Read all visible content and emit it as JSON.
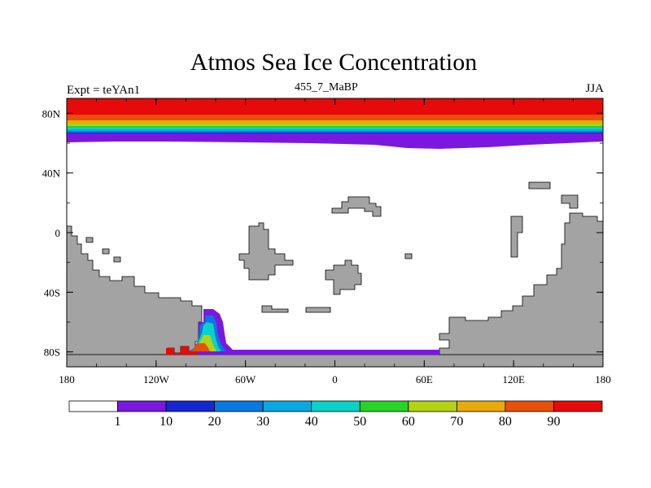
{
  "figure": {
    "title": "Atmos Sea Ice Concentration",
    "left_label": "Expt = teYAn1",
    "center_label": "455_7_MaBP",
    "right_label": "JJA"
  },
  "map": {
    "projection": "cylindrical equidistant",
    "lon_range": [
      -180,
      180
    ],
    "lat_range": [
      -90,
      90
    ],
    "lon_ticks": [
      {
        "value": -180,
        "label": "180"
      },
      {
        "value": -120,
        "label": "120W"
      },
      {
        "value": -60,
        "label": "60W"
      },
      {
        "value": 0,
        "label": "0"
      },
      {
        "value": 60,
        "label": "60E"
      },
      {
        "value": 120,
        "label": "120E"
      },
      {
        "value": 180,
        "label": "180"
      }
    ],
    "lat_ticks": [
      {
        "value": 80,
        "label": "80N"
      },
      {
        "value": 40,
        "label": "40N"
      },
      {
        "value": 0,
        "label": "0"
      },
      {
        "value": -40,
        "label": "40S"
      },
      {
        "value": -80,
        "label": "80S"
      }
    ],
    "land_color": "#a3a3a3",
    "ocean_color": "#ffffff"
  },
  "colorbar": {
    "levels": [
      "1",
      "10",
      "20",
      "30",
      "40",
      "50",
      "60",
      "70",
      "80",
      "90"
    ],
    "colors": [
      "#ffffff",
      "#7a18e0",
      "#1428d2",
      "#0a78e0",
      "#0aa8e0",
      "#0ad2c8",
      "#28d228",
      "#b4d214",
      "#e6aa0a",
      "#e6500a",
      "#e60a0a"
    ]
  },
  "chart_data": {
    "type": "heatmap",
    "title": "Atmos Sea Ice Concentration",
    "variable": "sea ice concentration (%)",
    "season": "JJA",
    "experiment": "teYAn1",
    "time": "455_7_MaBP",
    "northern_ice_edge_lat_range": [
      57,
      64
    ],
    "northern_ice_max": 90,
    "southern_ice_max": 90,
    "xlim": [
      -180,
      180
    ],
    "ylim": [
      -90,
      90
    ]
  }
}
